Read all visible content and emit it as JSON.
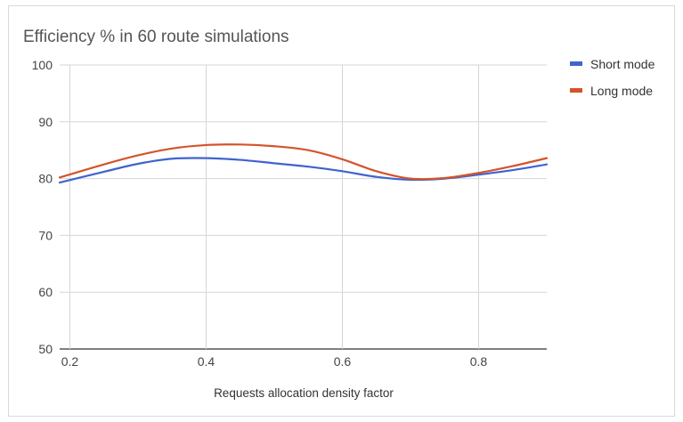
{
  "chart_data": {
    "type": "line",
    "title": "Efficiency % in 60 route simulations",
    "xlabel": "Requests allocation density factor",
    "ylabel": "",
    "xlim": [
      0.185,
      0.9
    ],
    "ylim": [
      50,
      100
    ],
    "x_ticks": [
      0.2,
      0.4,
      0.6,
      0.8
    ],
    "x_tick_labels": [
      "0.2",
      "0.4",
      "0.6",
      "0.8"
    ],
    "y_ticks": [
      50,
      60,
      70,
      80,
      90,
      100
    ],
    "y_tick_labels": [
      "50",
      "60",
      "70",
      "80",
      "90",
      "100"
    ],
    "grid": true,
    "legend_position": "right",
    "smooth": true,
    "series": [
      {
        "name": "Short mode",
        "color": "#3f63cf",
        "x": [
          0.185,
          0.25,
          0.3,
          0.35,
          0.4,
          0.45,
          0.5,
          0.55,
          0.6,
          0.65,
          0.7,
          0.75,
          0.8,
          0.85,
          0.9
        ],
        "y": [
          79.3,
          81.2,
          82.6,
          83.5,
          83.6,
          83.3,
          82.7,
          82.1,
          81.3,
          80.3,
          79.8,
          80.0,
          80.7,
          81.5,
          82.5
        ]
      },
      {
        "name": "Long mode",
        "color": "#d3542a",
        "x": [
          0.185,
          0.25,
          0.3,
          0.35,
          0.4,
          0.45,
          0.5,
          0.55,
          0.6,
          0.65,
          0.7,
          0.75,
          0.8,
          0.85,
          0.9
        ],
        "y": [
          80.2,
          82.5,
          84.1,
          85.3,
          85.9,
          86.0,
          85.7,
          85.0,
          83.4,
          81.3,
          80.0,
          80.1,
          81.0,
          82.2,
          83.6
        ]
      }
    ]
  }
}
